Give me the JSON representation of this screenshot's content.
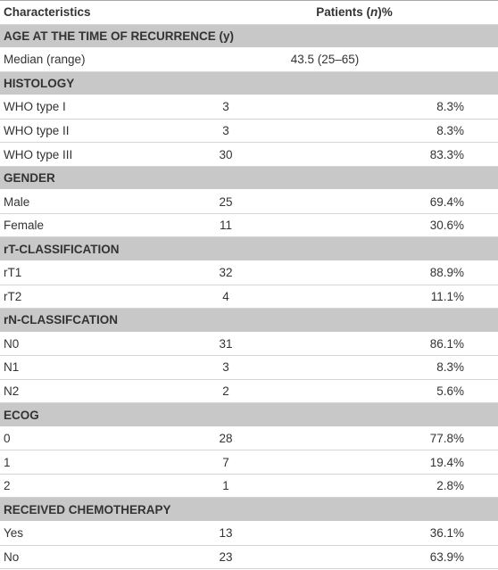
{
  "table": {
    "header": {
      "characteristics": "Characteristics",
      "patients": {
        "before": "Patients (",
        "italic": "n",
        "after": ")%"
      }
    },
    "sections": [
      {
        "title": "AGE AT THE TIME OF RECURRENCE (y)",
        "rows": [
          [
            "Median (range)",
            "43.5 (25–65)"
          ]
        ]
      },
      {
        "title": "HISTOLOGY",
        "rows": [
          [
            "WHO type I",
            "3",
            "8.3%"
          ],
          [
            "WHO type II",
            "3",
            "8.3%"
          ],
          [
            "WHO type III",
            "30",
            "83.3%"
          ]
        ]
      },
      {
        "title": "GENDER",
        "rows": [
          [
            "Male",
            "25",
            "69.4%"
          ],
          [
            "Female",
            "11",
            "30.6%"
          ]
        ]
      },
      {
        "title": "rT-CLASSIFICATION",
        "rows": [
          [
            "rT1",
            "32",
            "88.9%"
          ],
          [
            "rT2",
            "4",
            "11.1%"
          ]
        ]
      },
      {
        "title": "rN-CLASSIFCATION",
        "rows": [
          [
            "N0",
            "31",
            "86.1%"
          ],
          [
            "N1",
            "3",
            "8.3%"
          ],
          [
            "N2",
            "2",
            "5.6%"
          ]
        ]
      },
      {
        "title": "ECOG",
        "rows": [
          [
            "0",
            "28",
            "77.8%"
          ],
          [
            "1",
            "7",
            "19.4%"
          ],
          [
            "2",
            "1",
            "2.8%"
          ]
        ]
      },
      {
        "title": "RECEIVED CHEMOTHERAPY",
        "rows": [
          [
            "Yes",
            "13",
            "36.1%"
          ],
          [
            "No",
            "23",
            "63.9%"
          ]
        ]
      }
    ]
  }
}
